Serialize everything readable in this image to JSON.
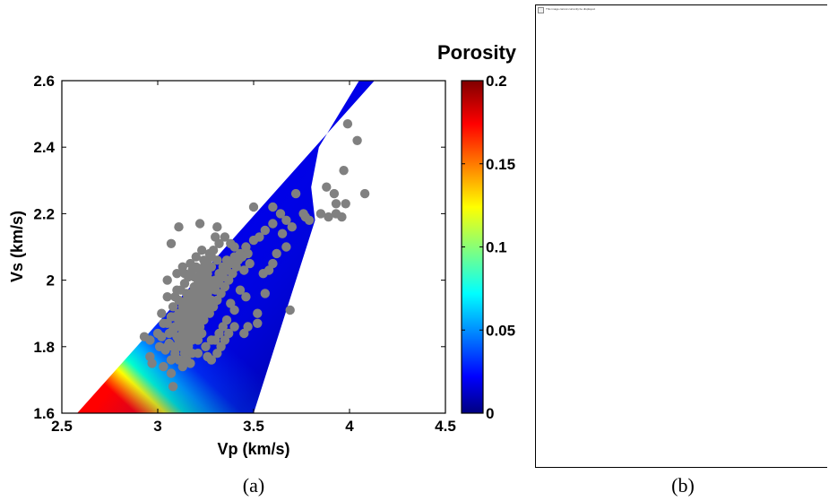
{
  "chart_data": {
    "type": "scatter",
    "xlabel": "Vp (km/s)",
    "ylabel": "Vs (km/s)",
    "xlim": [
      2.5,
      4.5
    ],
    "ylim": [
      1.6,
      2.6
    ],
    "xticks": [
      2.5,
      3,
      3.5,
      4,
      4.5
    ],
    "xtick_labels": [
      "2.5",
      "3",
      "3.5",
      "4",
      "4.5"
    ],
    "yticks": [
      1.6,
      1.8,
      2.0,
      2.2,
      2.4,
      2.6
    ],
    "ytick_labels": [
      "1.6",
      "1.8",
      "2",
      "2.2",
      "2.4",
      "2.6"
    ],
    "grid": false,
    "point_color": "#808080",
    "colorbar": {
      "title": "Porosity",
      "range": [
        0,
        0.2
      ],
      "ticks": [
        0,
        0.05,
        0.1,
        0.15,
        0.2
      ],
      "tick_labels": [
        "0",
        "0.05",
        "0.1",
        "0.15",
        "0.2"
      ],
      "colormap": "jet"
    },
    "model_region": {
      "description_polygon_vp_vs": [
        [
          2.58,
          1.6
        ],
        [
          4.13,
          2.6
        ],
        [
          4.05,
          2.6
        ],
        [
          3.84,
          2.4
        ],
        [
          3.8,
          2.28
        ],
        [
          3.82,
          2.18
        ],
        [
          3.5,
          1.6
        ]
      ]
    },
    "points": [
      [
        3.07,
        2.11
      ],
      [
        3.11,
        2.16
      ],
      [
        3.22,
        2.17
      ],
      [
        3.31,
        2.16
      ],
      [
        3.3,
        2.13
      ],
      [
        3.5,
        2.22
      ],
      [
        3.6,
        2.22
      ],
      [
        3.64,
        2.2
      ],
      [
        3.67,
        2.18
      ],
      [
        3.72,
        2.26
      ],
      [
        3.76,
        2.2
      ],
      [
        3.79,
        2.18
      ],
      [
        3.85,
        2.2
      ],
      [
        3.88,
        2.28
      ],
      [
        3.92,
        2.26
      ],
      [
        3.97,
        2.33
      ],
      [
        3.99,
        2.47
      ],
      [
        4.04,
        2.42
      ],
      [
        4.08,
        2.26
      ],
      [
        3.93,
        2.2
      ],
      [
        3.93,
        2.23
      ],
      [
        3.96,
        2.19
      ],
      [
        3.98,
        2.23
      ],
      [
        3.89,
        2.19
      ],
      [
        3.77,
        2.19
      ],
      [
        2.93,
        1.83
      ],
      [
        2.96,
        1.82
      ],
      [
        2.96,
        1.77
      ],
      [
        3.0,
        1.84
      ],
      [
        3.02,
        1.9
      ],
      [
        3.05,
        1.87
      ],
      [
        3.08,
        1.92
      ],
      [
        3.1,
        1.97
      ],
      [
        3.14,
        1.99
      ],
      [
        3.16,
        2.01
      ],
      [
        3.18,
        2.03
      ],
      [
        3.2,
        2.04
      ],
      [
        3.24,
        2.06
      ],
      [
        3.27,
        2.08
      ],
      [
        3.29,
        2.09
      ],
      [
        3.32,
        2.11
      ],
      [
        3.35,
        2.13
      ],
      [
        3.38,
        2.11
      ],
      [
        3.4,
        2.1
      ],
      [
        3.43,
        2.08
      ],
      [
        3.46,
        2.1
      ],
      [
        3.5,
        2.12
      ],
      [
        3.53,
        2.13
      ],
      [
        3.56,
        2.15
      ],
      [
        3.6,
        2.17
      ],
      [
        3.65,
        2.14
      ],
      [
        3.7,
        2.16
      ],
      [
        3.02,
        1.83
      ],
      [
        3.04,
        1.79
      ],
      [
        3.06,
        1.81
      ],
      [
        3.08,
        1.85
      ],
      [
        3.1,
        1.83
      ],
      [
        3.12,
        1.8
      ],
      [
        3.14,
        1.84
      ],
      [
        3.16,
        1.86
      ],
      [
        3.18,
        1.88
      ],
      [
        3.2,
        1.9
      ],
      [
        3.22,
        1.92
      ],
      [
        3.24,
        1.94
      ],
      [
        3.26,
        1.96
      ],
      [
        3.28,
        1.98
      ],
      [
        3.3,
        2.0
      ],
      [
        3.32,
        2.02
      ],
      [
        3.34,
        2.04
      ],
      [
        3.36,
        2.06
      ],
      [
        3.12,
        1.88
      ],
      [
        3.14,
        1.9
      ],
      [
        3.16,
        1.92
      ],
      [
        3.18,
        1.94
      ],
      [
        3.2,
        1.96
      ],
      [
        3.22,
        1.98
      ],
      [
        3.24,
        2.0
      ],
      [
        3.26,
        2.02
      ],
      [
        3.28,
        2.04
      ],
      [
        3.1,
        1.86
      ],
      [
        3.13,
        1.86
      ],
      [
        3.15,
        1.88
      ],
      [
        3.17,
        1.9
      ],
      [
        3.19,
        1.92
      ],
      [
        3.21,
        1.94
      ],
      [
        3.23,
        1.96
      ],
      [
        3.25,
        1.98
      ],
      [
        3.27,
        2.0
      ],
      [
        3.08,
        1.8
      ],
      [
        3.11,
        1.82
      ],
      [
        3.13,
        1.84
      ],
      [
        3.15,
        1.82
      ],
      [
        3.17,
        1.84
      ],
      [
        3.19,
        1.86
      ],
      [
        3.21,
        1.88
      ],
      [
        3.23,
        1.9
      ],
      [
        3.25,
        1.92
      ],
      [
        3.06,
        1.84
      ],
      [
        3.09,
        1.86
      ],
      [
        3.11,
        1.9
      ],
      [
        3.13,
        1.92
      ],
      [
        3.15,
        1.94
      ],
      [
        3.17,
        1.96
      ],
      [
        3.19,
        1.98
      ],
      [
        3.21,
        2.0
      ],
      [
        3.23,
        2.02
      ],
      [
        3.3,
        1.97
      ],
      [
        3.32,
        1.99
      ],
      [
        3.34,
        2.01
      ],
      [
        3.36,
        2.03
      ],
      [
        3.38,
        2.05
      ],
      [
        3.4,
        2.07
      ],
      [
        3.28,
        1.94
      ],
      [
        3.26,
        1.92
      ],
      [
        3.24,
        1.88
      ],
      [
        3.22,
        1.86
      ],
      [
        3.2,
        1.84
      ],
      [
        3.18,
        1.82
      ],
      [
        3.16,
        1.8
      ],
      [
        3.14,
        1.78
      ],
      [
        3.27,
        1.9
      ],
      [
        3.29,
        1.92
      ],
      [
        3.31,
        1.94
      ],
      [
        3.33,
        1.96
      ],
      [
        3.35,
        1.98
      ],
      [
        3.37,
        2.0
      ],
      [
        3.39,
        2.02
      ],
      [
        3.41,
        2.04
      ],
      [
        3.42,
        2.06
      ],
      [
        3.44,
        2.07
      ],
      [
        3.47,
        2.08
      ],
      [
        3.48,
        2.05
      ],
      [
        3.45,
        2.03
      ],
      [
        3.09,
        1.95
      ],
      [
        3.12,
        1.97
      ],
      [
        3.14,
        2.02
      ],
      [
        3.17,
        2.05
      ],
      [
        3.2,
        2.07
      ],
      [
        3.23,
        2.09
      ],
      [
        3.25,
        2.05
      ],
      [
        3.28,
        2.07
      ],
      [
        3.31,
        2.06
      ],
      [
        3.05,
        1.95
      ],
      [
        3.03,
        1.87
      ],
      [
        3.07,
        1.89
      ],
      [
        3.09,
        1.89
      ],
      [
        3.11,
        1.88
      ],
      [
        3.12,
        1.86
      ],
      [
        3.14,
        1.87
      ],
      [
        3.16,
        1.89
      ],
      [
        3.18,
        1.91
      ],
      [
        2.97,
        1.75
      ],
      [
        3.03,
        1.74
      ],
      [
        3.07,
        1.72
      ],
      [
        3.08,
        1.68
      ],
      [
        3.13,
        1.74
      ],
      [
        3.15,
        1.76
      ],
      [
        3.17,
        1.75
      ],
      [
        3.21,
        1.78
      ],
      [
        3.25,
        1.8
      ],
      [
        3.26,
        1.77
      ],
      [
        3.28,
        1.76
      ],
      [
        3.31,
        1.78
      ],
      [
        3.33,
        1.8
      ],
      [
        3.35,
        1.82
      ],
      [
        3.37,
        1.84
      ],
      [
        3.4,
        1.86
      ],
      [
        3.45,
        1.84
      ],
      [
        3.47,
        1.86
      ],
      [
        3.52,
        1.87
      ],
      [
        3.52,
        1.9
      ],
      [
        3.46,
        1.95
      ],
      [
        3.43,
        1.97
      ],
      [
        3.55,
        2.02
      ],
      [
        3.58,
        2.03
      ],
      [
        3.6,
        2.05
      ],
      [
        3.62,
        2.08
      ],
      [
        3.67,
        2.1
      ],
      [
        3.69,
        1.91
      ],
      [
        3.56,
        1.96
      ],
      [
        3.4,
        1.91
      ],
      [
        3.38,
        1.93
      ],
      [
        3.36,
        1.88
      ],
      [
        3.34,
        1.86
      ],
      [
        3.32,
        1.84
      ],
      [
        3.3,
        1.82
      ],
      [
        3.28,
        1.82
      ],
      [
        3.05,
        2.0
      ],
      [
        3.1,
        2.02
      ],
      [
        3.13,
        2.04
      ],
      [
        3.15,
        1.96
      ],
      [
        3.11,
        1.94
      ],
      [
        3.19,
        2.01
      ],
      [
        3.22,
        2.03
      ],
      [
        3.24,
        2.04
      ],
      [
        3.26,
        2.06
      ],
      [
        3.18,
        1.78
      ],
      [
        3.21,
        1.82
      ],
      [
        3.23,
        1.84
      ],
      [
        3.11,
        1.76
      ],
      [
        3.13,
        1.8
      ],
      [
        3.09,
        1.78
      ],
      [
        3.07,
        1.76
      ],
      [
        3.05,
        1.8
      ],
      [
        3.01,
        1.8
      ]
    ]
  },
  "captions": {
    "a": "(a)",
    "b": "(b)"
  },
  "panel_b": {
    "broken_image_text": "This image cannot currently be displayed."
  }
}
